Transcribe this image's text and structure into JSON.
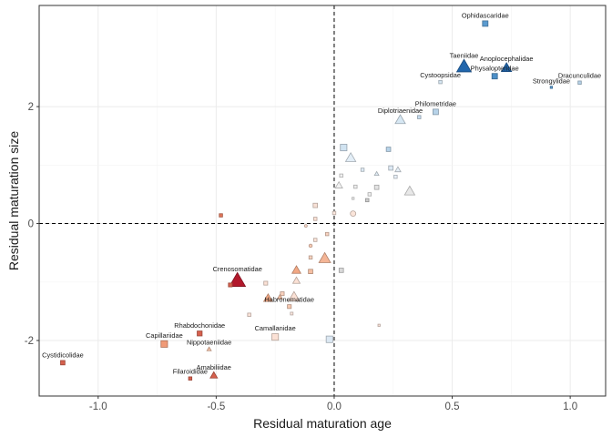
{
  "chart_data": {
    "type": "scatter",
    "title": "",
    "xlabel": "Residual maturation age",
    "ylabel": "Residual maturation size",
    "xlim": [
      -1.25,
      1.15
    ],
    "ylim": [
      -2.95,
      3.73
    ],
    "x_ticks": [
      -1.0,
      -0.5,
      0.0,
      0.5,
      1.0
    ],
    "x_tick_labels": [
      "-1.0",
      "-0.5",
      "0.0",
      "0.5",
      "1.0"
    ],
    "y_ticks": [
      -2,
      0,
      2
    ],
    "y_tick_labels": [
      "-2",
      "0",
      "2"
    ],
    "grid": true,
    "reference_lines": {
      "x": 0,
      "y": 0,
      "style": "dashed"
    },
    "legend": "none",
    "points": [
      {
        "x": 0.64,
        "y": 3.42,
        "shape": "square",
        "size": 1.0,
        "color": "#5b9bd0",
        "label": "Ophidascaridae"
      },
      {
        "x": 0.55,
        "y": 2.68,
        "shape": "triangle",
        "size": 2.0,
        "color": "#2166ac",
        "label": "Taeniidae"
      },
      {
        "x": 0.73,
        "y": 2.66,
        "shape": "triangle",
        "size": 1.4,
        "color": "#2166ac",
        "label": "Anoplocephalidae"
      },
      {
        "x": 0.45,
        "y": 2.42,
        "shape": "square",
        "size": 0.6,
        "color": "#d6e7f3",
        "label": "Cystoopsidae"
      },
      {
        "x": 0.68,
        "y": 2.52,
        "shape": "square",
        "size": 1.0,
        "color": "#4d8fc7",
        "label": "Physalopteridae"
      },
      {
        "x": 1.04,
        "y": 2.41,
        "shape": "square",
        "size": 0.6,
        "color": "#b7d3e9",
        "label": "Dracunculidae"
      },
      {
        "x": 0.92,
        "y": 2.33,
        "shape": "square",
        "size": 0.4,
        "color": "#5b9bd0",
        "label": "Strongylidae"
      },
      {
        "x": 0.43,
        "y": 1.91,
        "shape": "square",
        "size": 1.0,
        "color": "#b7d3e9",
        "label": "Philometridae"
      },
      {
        "x": 0.28,
        "y": 1.77,
        "shape": "triangle",
        "size": 1.4,
        "color": "#d6e7f3",
        "label": "Diplotriaenidae"
      },
      {
        "x": 0.36,
        "y": 1.82,
        "shape": "square",
        "size": 0.6,
        "color": "#c6dcee",
        "label": ""
      },
      {
        "x": 0.04,
        "y": 1.3,
        "shape": "square",
        "size": 1.2,
        "color": "#d1e3f1",
        "label": ""
      },
      {
        "x": 0.07,
        "y": 1.12,
        "shape": "triangle",
        "size": 1.4,
        "color": "#e3eef7",
        "label": ""
      },
      {
        "x": 0.23,
        "y": 1.27,
        "shape": "square",
        "size": 0.8,
        "color": "#b7d3e9",
        "label": ""
      },
      {
        "x": 0.12,
        "y": 0.92,
        "shape": "square",
        "size": 0.6,
        "color": "#dfebf5",
        "label": ""
      },
      {
        "x": 0.24,
        "y": 0.95,
        "shape": "square",
        "size": 0.8,
        "color": "#dde9f4",
        "label": ""
      },
      {
        "x": 0.18,
        "y": 0.85,
        "shape": "triangle",
        "size": 0.6,
        "color": "#e1ecf5",
        "label": ""
      },
      {
        "x": 0.27,
        "y": 0.92,
        "shape": "triangle",
        "size": 0.8,
        "color": "#e6eff7",
        "label": ""
      },
      {
        "x": 0.26,
        "y": 0.8,
        "shape": "square",
        "size": 0.6,
        "color": "#e8f0f8",
        "label": ""
      },
      {
        "x": 0.32,
        "y": 0.55,
        "shape": "triangle",
        "size": 1.4,
        "color": "#e8e8e8",
        "label": ""
      },
      {
        "x": 0.03,
        "y": 0.82,
        "shape": "square",
        "size": 0.6,
        "color": "#f1f1f1",
        "label": ""
      },
      {
        "x": 0.02,
        "y": 0.65,
        "shape": "triangle",
        "size": 1.0,
        "color": "#f2f2f2",
        "label": ""
      },
      {
        "x": 0.09,
        "y": 0.63,
        "shape": "square",
        "size": 0.6,
        "color": "#ededed",
        "label": ""
      },
      {
        "x": 0.18,
        "y": 0.62,
        "shape": "square",
        "size": 0.8,
        "color": "#e4e4e4",
        "label": ""
      },
      {
        "x": 0.15,
        "y": 0.5,
        "shape": "square",
        "size": 0.6,
        "color": "#eeeeee",
        "label": ""
      },
      {
        "x": 0.14,
        "y": 0.4,
        "shape": "square",
        "size": 0.6,
        "color": "#cccccc",
        "label": ""
      },
      {
        "x": 0.08,
        "y": 0.43,
        "shape": "square",
        "size": 0.4,
        "color": "#f0f0f0",
        "label": ""
      },
      {
        "x": -0.08,
        "y": 0.31,
        "shape": "square",
        "size": 0.8,
        "color": "#f8e1d6",
        "label": ""
      },
      {
        "x": 0.08,
        "y": 0.17,
        "shape": "circle",
        "size": 1.0,
        "color": "#fbe5da",
        "label": ""
      },
      {
        "x": 0.0,
        "y": 0.18,
        "shape": "square",
        "size": 0.6,
        "color": "#fbe8df",
        "label": ""
      },
      {
        "x": -0.08,
        "y": 0.08,
        "shape": "square",
        "size": 0.6,
        "color": "#fbe1d5",
        "label": ""
      },
      {
        "x": -0.12,
        "y": -0.04,
        "shape": "circle",
        "size": 0.5,
        "color": "#f9d8c8",
        "label": ""
      },
      {
        "x": -0.03,
        "y": -0.18,
        "shape": "square",
        "size": 0.6,
        "color": "#f8d3c0",
        "label": ""
      },
      {
        "x": -0.08,
        "y": -0.28,
        "shape": "square",
        "size": 0.6,
        "color": "#fbe4d8",
        "label": ""
      },
      {
        "x": -0.1,
        "y": -0.38,
        "shape": "circle",
        "size": 0.6,
        "color": "#f7cbb5",
        "label": ""
      },
      {
        "x": -0.04,
        "y": -0.6,
        "shape": "triangle",
        "size": 1.6,
        "color": "#f4b596",
        "label": ""
      },
      {
        "x": -0.1,
        "y": -0.58,
        "shape": "square",
        "size": 0.6,
        "color": "#f8d3c0",
        "label": ""
      },
      {
        "x": -0.1,
        "y": -0.82,
        "shape": "square",
        "size": 0.8,
        "color": "#f5bfa3",
        "label": ""
      },
      {
        "x": 0.03,
        "y": -0.8,
        "shape": "square",
        "size": 0.8,
        "color": "#d9d9d9",
        "label": ""
      },
      {
        "x": -0.48,
        "y": 0.14,
        "shape": "square",
        "size": 0.6,
        "color": "#e0765a",
        "label": ""
      },
      {
        "x": -0.41,
        "y": -0.98,
        "shape": "triangle",
        "size": 2.2,
        "color": "#b2182b",
        "label": "Crenosomatidae"
      },
      {
        "x": -0.44,
        "y": -1.05,
        "shape": "square",
        "size": 0.7,
        "color": "#d6604d",
        "label": ""
      },
      {
        "x": -0.16,
        "y": -0.8,
        "shape": "triangle",
        "size": 1.2,
        "color": "#f2a884",
        "label": ""
      },
      {
        "x": -0.16,
        "y": -0.98,
        "shape": "triangle",
        "size": 1.0,
        "color": "#fbe1d5",
        "label": ""
      },
      {
        "x": -0.22,
        "y": -1.2,
        "shape": "square",
        "size": 0.7,
        "color": "#f9d1bd",
        "label": ""
      },
      {
        "x": -0.29,
        "y": -1.02,
        "shape": "square",
        "size": 0.7,
        "color": "#fbe1d5",
        "label": ""
      },
      {
        "x": -0.28,
        "y": -1.28,
        "shape": "triangle",
        "size": 1.2,
        "color": "#f2a884",
        "label": ""
      },
      {
        "x": -0.23,
        "y": -1.26,
        "shape": "triangle",
        "size": 0.7,
        "color": "#f7c2a7",
        "label": ""
      },
      {
        "x": -0.17,
        "y": -1.26,
        "shape": "triangle",
        "size": 1.5,
        "color": "#fbe1d5",
        "label": ""
      },
      {
        "x": -0.19,
        "y": -1.42,
        "shape": "square",
        "size": 0.7,
        "color": "#f6c8b0",
        "label": "Habronematidae"
      },
      {
        "x": -0.18,
        "y": -1.54,
        "shape": "square",
        "size": 0.5,
        "color": "#fce8df",
        "label": ""
      },
      {
        "x": -0.36,
        "y": -1.56,
        "shape": "square",
        "size": 0.6,
        "color": "#fbe3d8",
        "label": ""
      },
      {
        "x": -0.25,
        "y": -1.94,
        "shape": "square",
        "size": 1.2,
        "color": "#fbe1d5",
        "label": "Camallanidae"
      },
      {
        "x": -0.02,
        "y": -1.98,
        "shape": "square",
        "size": 1.2,
        "color": "#dce8f3",
        "label": ""
      },
      {
        "x": 0.19,
        "y": -1.74,
        "shape": "square",
        "size": 0.4,
        "color": "#fbe3d8",
        "label": ""
      },
      {
        "x": -0.57,
        "y": -1.88,
        "shape": "square",
        "size": 0.9,
        "color": "#d6604d",
        "label": "Rhabdochonidae"
      },
      {
        "x": -0.72,
        "y": -2.06,
        "shape": "square",
        "size": 1.2,
        "color": "#f09a77",
        "label": "Capillariidae"
      },
      {
        "x": -0.53,
        "y": -2.15,
        "shape": "triangle",
        "size": 0.6,
        "color": "#f7c2a7",
        "label": "Nippotaeniidae"
      },
      {
        "x": -1.15,
        "y": -2.38,
        "shape": "square",
        "size": 0.8,
        "color": "#d6604d",
        "label": "Cystidicolidae"
      },
      {
        "x": -0.51,
        "y": -2.6,
        "shape": "triangle",
        "size": 1.0,
        "color": "#d6604d",
        "label": "Amabiliidae"
      },
      {
        "x": -0.61,
        "y": -2.65,
        "shape": "square",
        "size": 0.6,
        "color": "#d6604d",
        "label": "Filaroididae"
      }
    ]
  }
}
